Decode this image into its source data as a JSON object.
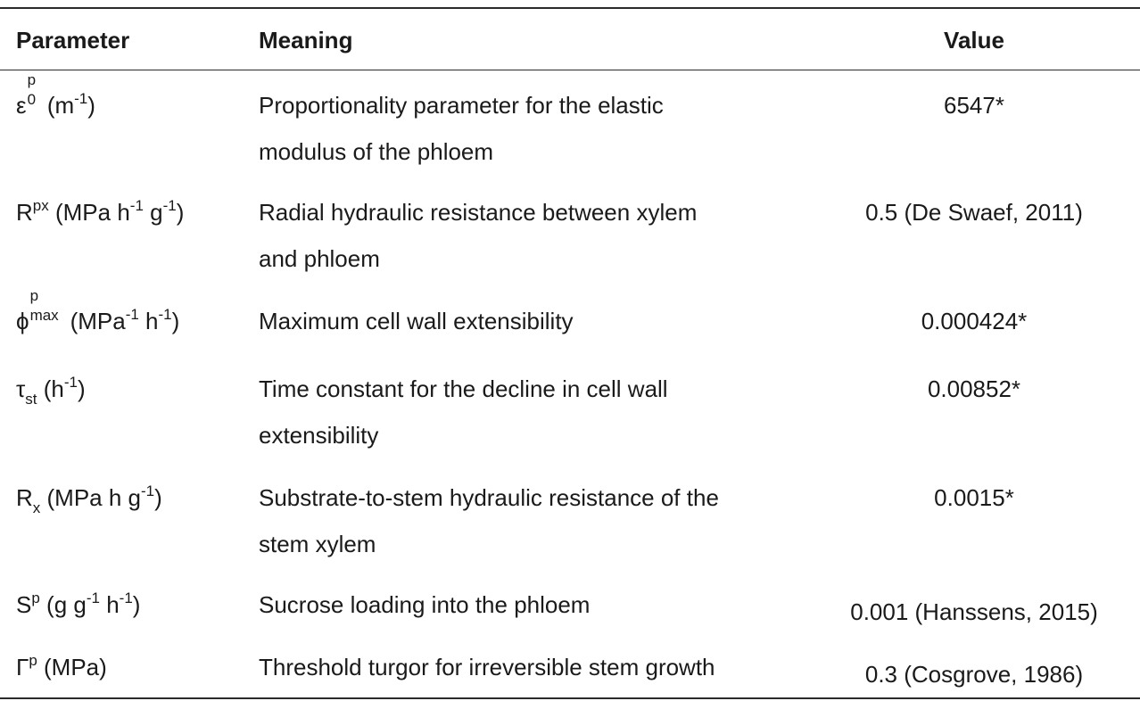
{
  "header": {
    "parameter": "Parameter",
    "meaning": "Meaning",
    "value": "Value"
  },
  "rows": [
    {
      "symbol": "ε",
      "sup": "p",
      "sub": "0",
      "unit_open": " (m",
      "unit_sup1": "-1",
      "unit_close": ")",
      "meaning_line1": "Proportionality parameter for the elastic",
      "meaning_line2": "modulus of the phloem",
      "value": "6547*"
    },
    {
      "symbol": "R",
      "sup": "px",
      "unit_text": " (MPa h",
      "unit_sup1": "-1",
      "unit_mid": " g",
      "unit_sup2": "-1",
      "unit_close": ")",
      "meaning_line1": "Radial hydraulic resistance between xylem",
      "meaning_line2": "and phloem",
      "value": "0.5 (De Swaef, 2011)"
    },
    {
      "symbol": "ϕ",
      "sup": "p",
      "sub": "max",
      "unit_text": "(MPa",
      "unit_sup1": "-1",
      "unit_mid": " h",
      "unit_sup2": "-1",
      "unit_close": ")",
      "meaning_line1": "Maximum cell wall extensibility",
      "value": "0.000424*"
    },
    {
      "symbol": "τ",
      "sub": "st",
      "unit_text": " (h",
      "unit_sup1": "-1",
      "unit_close": ")",
      "meaning_line1": "Time constant for the decline in cell wall",
      "meaning_line2": "extensibility",
      "value": "0.00852*"
    },
    {
      "symbol": "R",
      "sub": "x",
      "unit_text": " (MPa h g",
      "unit_sup1": "-1",
      "unit_close": ")",
      "meaning_line1": "Substrate-to-stem hydraulic resistance of the",
      "meaning_line2": "stem xylem",
      "value": "0.0015*"
    },
    {
      "symbol": "S",
      "sup": "p",
      "unit_text": " (g g",
      "unit_sup1": "-1",
      "unit_mid": " h",
      "unit_sup2": "-1",
      "unit_close": ")",
      "meaning_line1": "Sucrose loading into the phloem",
      "value": "0.001 (Hanssens, 2015)"
    },
    {
      "symbol": "Γ",
      "sup": "p",
      "unit_text": " (MPa)",
      "meaning_line1": "Threshold turgor for irreversible stem growth",
      "value": "0.3 (Cosgrove, 1986)"
    }
  ]
}
